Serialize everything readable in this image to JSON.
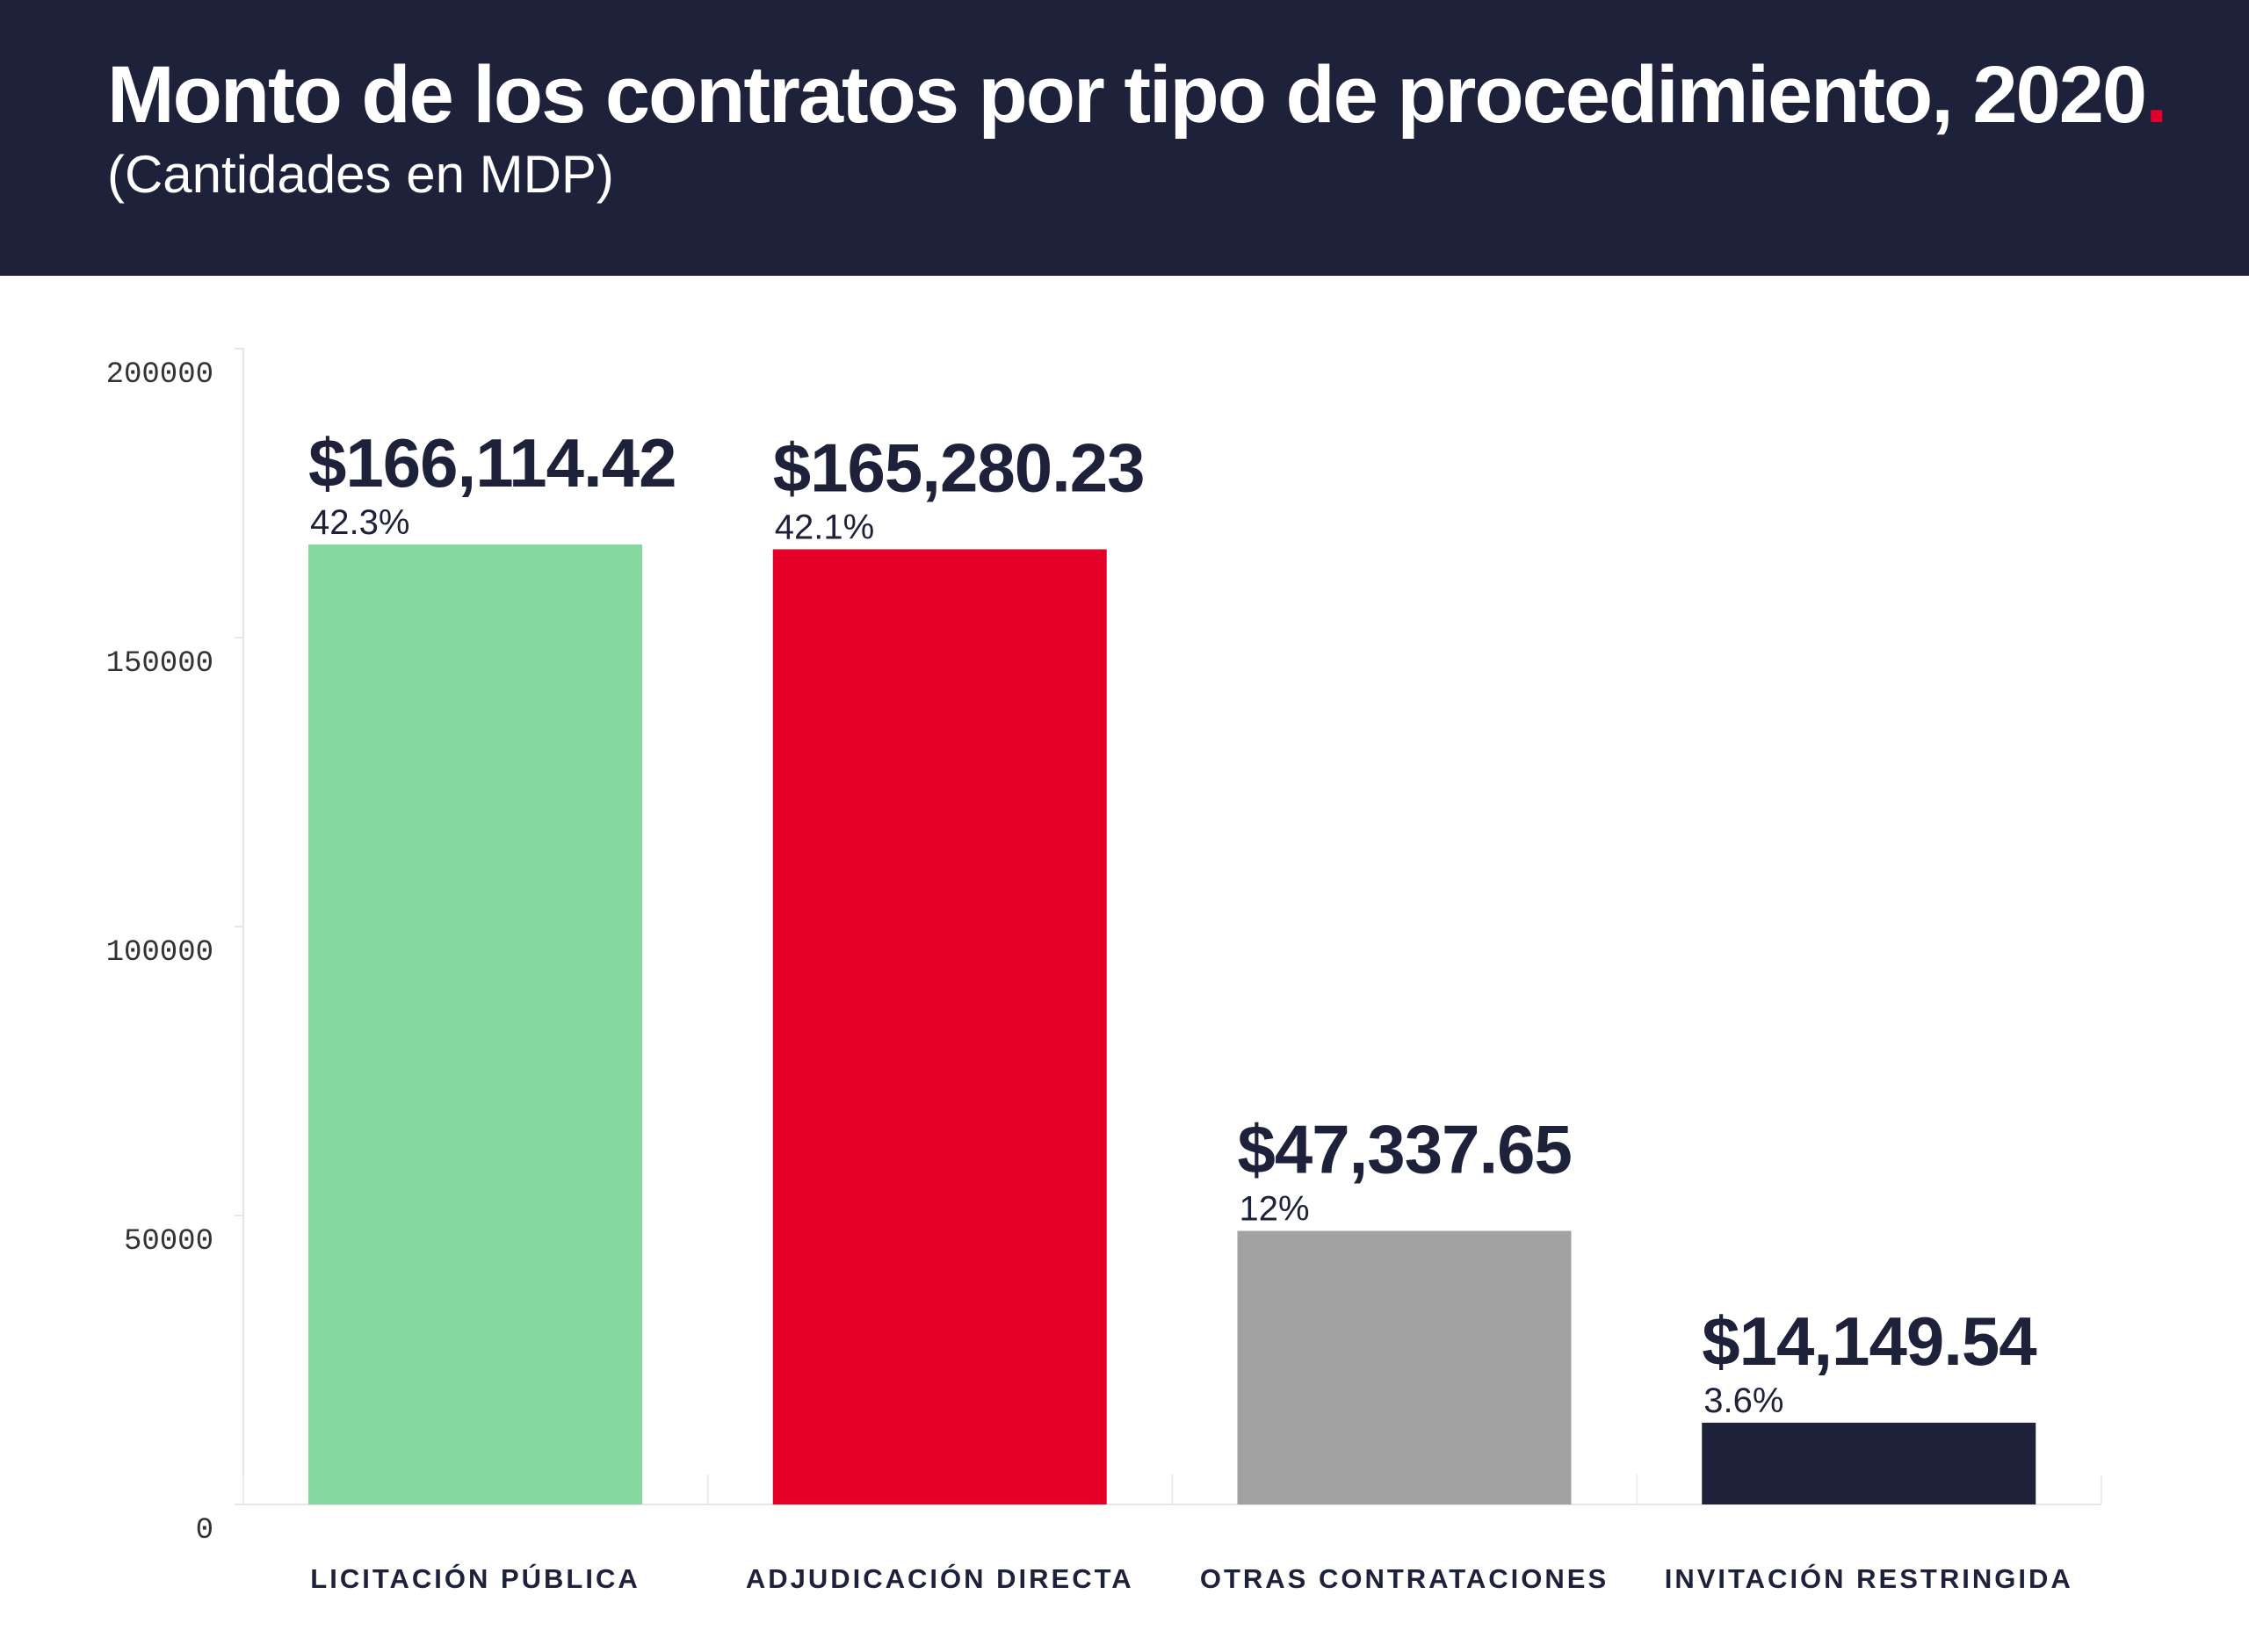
{
  "header": {
    "title": "Monto de los contratos por tipo de procedimiento, 2020",
    "title_dot": ".",
    "subtitle": "(Cantidades en MDP)"
  },
  "chart_data": {
    "type": "bar",
    "title": "Monto de los contratos por tipo de procedimiento, 2020",
    "subtitle": "(Cantidades en MDP)",
    "xlabel": "",
    "ylabel": "",
    "ylim": [
      0,
      200000
    ],
    "yticks": [
      0,
      50000,
      100000,
      150000,
      200000
    ],
    "grid": false,
    "categories": [
      "LICITACIÓN PÚBLICA",
      "ADJUDICACIÓN DIRECTA",
      "OTRAS CONTRATACIONES",
      "INVITACIÓN RESTRINGIDA"
    ],
    "values": [
      166114.42,
      165280.23,
      47337.65,
      14149.54
    ],
    "value_labels": [
      "$166,114.42",
      "$165,280.23",
      "$47,337.65",
      "$14,149.54"
    ],
    "percent_labels": [
      "42.3%",
      "42.1%",
      "12%",
      "3.6%"
    ],
    "colors": [
      "#86d8a0",
      "#e40026",
      "#a2a2a2",
      "#1e213a"
    ]
  }
}
